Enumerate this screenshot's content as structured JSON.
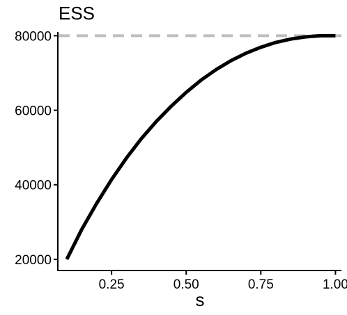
{
  "chart_data": {
    "type": "line",
    "title": "ESS",
    "xlabel": "s",
    "ylabel": "",
    "xlim": [
      0.07,
      1.02
    ],
    "ylim": [
      17000,
      81000
    ],
    "x_ticks": [
      0.25,
      0.5,
      0.75,
      1.0
    ],
    "x_tick_labels": [
      "0.25",
      "0.50",
      "0.75",
      "1.00"
    ],
    "y_ticks": [
      20000,
      40000,
      60000,
      80000
    ],
    "y_tick_labels": [
      "20000",
      "40000",
      "60000",
      "80000"
    ],
    "grid": false,
    "reference_line": {
      "y": 80000,
      "style": "dashed",
      "color": "#bebebe"
    },
    "series": [
      {
        "color": "#000000",
        "x": [
          0.1,
          0.15,
          0.2,
          0.25,
          0.3,
          0.35,
          0.4,
          0.45,
          0.5,
          0.55,
          0.6,
          0.65,
          0.7,
          0.75,
          0.8,
          0.85,
          0.9,
          0.95,
          1.0
        ],
        "y": [
          20000,
          28000,
          35000,
          41400,
          47200,
          52400,
          57000,
          61100,
          64800,
          68100,
          70900,
          73300,
          75300,
          76900,
          78200,
          79100,
          79700,
          80000,
          80000
        ]
      }
    ]
  }
}
